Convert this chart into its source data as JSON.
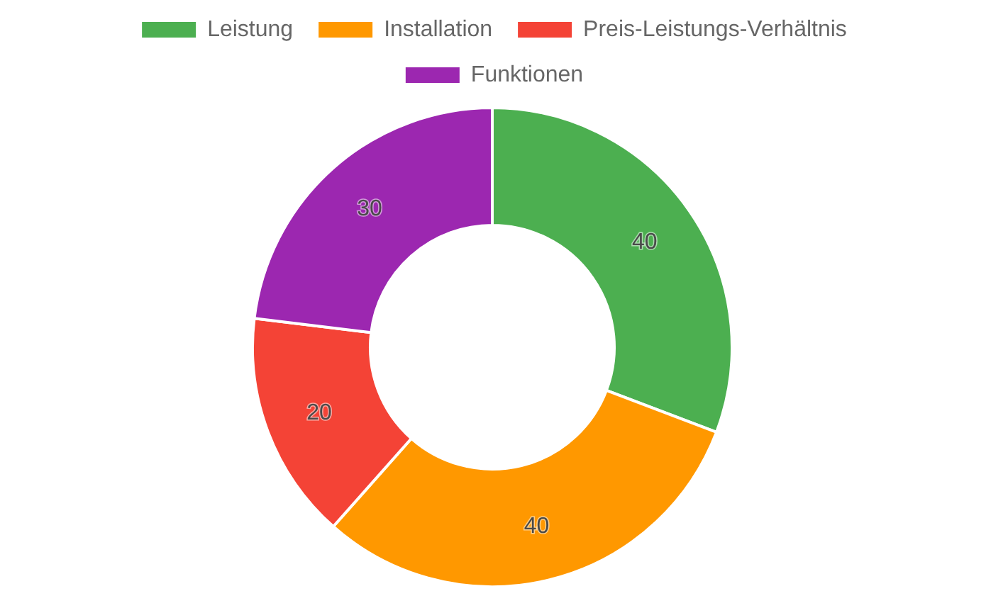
{
  "chart_data": {
    "type": "donut",
    "categories": [
      "Leistung",
      "Installation",
      "Preis-Leistungs-Verhältnis",
      "Funktionen"
    ],
    "values": [
      40,
      40,
      20,
      30
    ],
    "colors": [
      "#4caf50",
      "#ff9800",
      "#f44336",
      "#9c27b0"
    ],
    "data_labels": true,
    "legend": "top"
  }
}
